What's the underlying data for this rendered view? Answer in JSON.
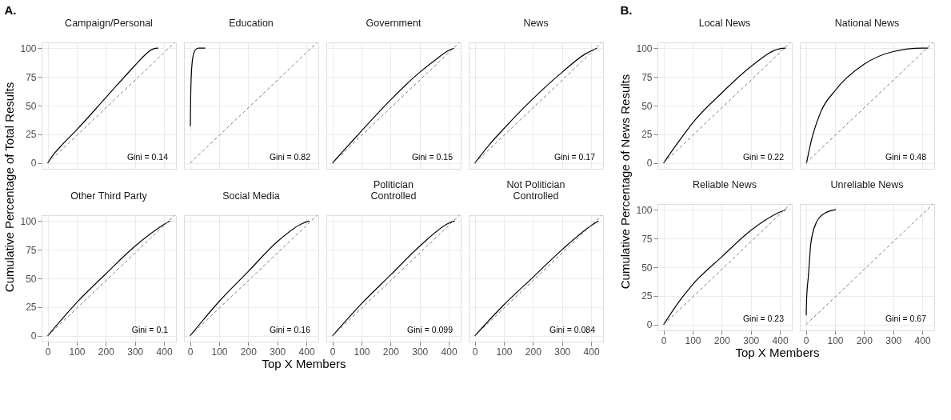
{
  "chart_data": [
    {
      "type": "line",
      "title": "Campaign/Personal",
      "ylabel": "Cumulative Percentage of Total Results",
      "annotations": [
        "A.",
        "Gini = 0.14"
      ],
      "xlim": [
        -21,
        441
      ],
      "ylim": [
        -5,
        105
      ],
      "xticks": [
        0,
        100,
        200,
        300,
        400
      ],
      "yticks": [
        0,
        25,
        50,
        75,
        100
      ],
      "grid": true,
      "tick_labels": "y",
      "series": [
        {
          "color": "#000000",
          "line_style": "solid",
          "x": [
            0,
            10,
            25,
            50,
            100,
            200,
            300,
            330,
            350,
            365,
            380
          ],
          "values": [
            0,
            4,
            9,
            16,
            29,
            57,
            85,
            93,
            97.5,
            99.5,
            100
          ]
        },
        {
          "color": "#808080",
          "line_style": "dashed",
          "x": [
            0,
            437
          ],
          "values": [
            0,
            105
          ]
        }
      ]
    },
    {
      "type": "line",
      "title": "Education",
      "annotations": [
        "Gini = 0.82"
      ],
      "xlim": [
        -21,
        441
      ],
      "ylim": [
        -5,
        105
      ],
      "xticks": [
        0,
        100,
        200,
        300,
        400
      ],
      "yticks": [
        0,
        25,
        50,
        75,
        100
      ],
      "grid": true,
      "tick_labels": false,
      "series": [
        {
          "color": "#000000",
          "line_style": "solid",
          "x": [
            1,
            2,
            4,
            7,
            12,
            20,
            30,
            52
          ],
          "values": [
            32,
            55,
            75,
            87,
            95,
            99,
            100,
            100
          ]
        },
        {
          "color": "#808080",
          "line_style": "dashed",
          "x": [
            0,
            437
          ],
          "values": [
            0,
            105
          ]
        }
      ]
    },
    {
      "type": "line",
      "title": "Government",
      "annotations": [
        "Gini = 0.15"
      ],
      "xlim": [
        -21,
        441
      ],
      "ylim": [
        -5,
        105
      ],
      "xticks": [
        0,
        100,
        200,
        300,
        400
      ],
      "yticks": [
        0,
        25,
        50,
        75,
        100
      ],
      "grid": true,
      "tick_labels": false,
      "series": [
        {
          "color": "#000000",
          "line_style": "solid",
          "x": [
            0,
            50,
            100,
            200,
            300,
            350,
            400,
            418
          ],
          "values": [
            0,
            14,
            28,
            55,
            79,
            89,
            98,
            100
          ]
        },
        {
          "color": "#808080",
          "line_style": "dashed",
          "x": [
            0,
            437
          ],
          "values": [
            0,
            105
          ]
        }
      ]
    },
    {
      "type": "line",
      "title": "News",
      "annotations": [
        "Gini = 0.17"
      ],
      "xlim": [
        -21,
        441
      ],
      "ylim": [
        -5,
        105
      ],
      "xticks": [
        0,
        100,
        200,
        300,
        400
      ],
      "yticks": [
        0,
        25,
        50,
        75,
        100
      ],
      "grid": true,
      "tick_labels": false,
      "series": [
        {
          "color": "#000000",
          "line_style": "solid",
          "x": [
            0,
            50,
            100,
            200,
            300,
            380,
            420
          ],
          "values": [
            0,
            16,
            30,
            56,
            79,
            95,
            100
          ]
        },
        {
          "color": "#808080",
          "line_style": "dashed",
          "x": [
            0,
            437
          ],
          "values": [
            0,
            105
          ]
        }
      ]
    },
    {
      "type": "line",
      "title": "Other Third Party",
      "annotations": [
        "Gini = 0.1"
      ],
      "xlim": [
        -21,
        441
      ],
      "ylim": [
        -5,
        105
      ],
      "xticks": [
        0,
        100,
        200,
        300,
        400
      ],
      "yticks": [
        0,
        25,
        50,
        75,
        100
      ],
      "grid": true,
      "series": [
        {
          "color": "#000000",
          "line_style": "solid",
          "x": [
            0,
            100,
            200,
            300,
            400,
            420
          ],
          "values": [
            0,
            29,
            54,
            78,
            97,
            100
          ]
        },
        {
          "color": "#808080",
          "line_style": "dashed",
          "x": [
            0,
            437
          ],
          "values": [
            0,
            105
          ]
        }
      ]
    },
    {
      "type": "line",
      "title": "Social Media",
      "xlabel": "Top X Members",
      "annotations": [
        "Gini = 0.16"
      ],
      "xlim": [
        -21,
        441
      ],
      "ylim": [
        -5,
        105
      ],
      "xticks": [
        0,
        100,
        200,
        300,
        400
      ],
      "yticks": [
        0,
        25,
        50,
        75,
        100
      ],
      "grid": true,
      "tick_labels": "x",
      "series": [
        {
          "color": "#000000",
          "line_style": "solid",
          "x": [
            0,
            100,
            200,
            300,
            380,
            410
          ],
          "values": [
            0,
            30,
            56,
            82,
            97,
            100
          ]
        },
        {
          "color": "#808080",
          "line_style": "dashed",
          "x": [
            0,
            437
          ],
          "values": [
            0,
            105
          ]
        }
      ]
    },
    {
      "type": "line",
      "title": "Politician\nControlled",
      "annotations": [
        "Gini = 0.099"
      ],
      "xlim": [
        -21,
        441
      ],
      "ylim": [
        -5,
        105
      ],
      "xticks": [
        0,
        100,
        200,
        300,
        400
      ],
      "yticks": [
        0,
        25,
        50,
        75,
        100
      ],
      "grid": true,
      "tick_labels": "x",
      "series": [
        {
          "color": "#000000",
          "line_style": "solid",
          "x": [
            0,
            100,
            200,
            300,
            400,
            420
          ],
          "values": [
            0,
            28,
            53,
            78,
            98,
            100
          ]
        },
        {
          "color": "#808080",
          "line_style": "dashed",
          "x": [
            0,
            437
          ],
          "values": [
            0,
            105
          ]
        }
      ]
    },
    {
      "type": "line",
      "title": "Not Politician\nControlled",
      "annotations": [
        "Gini = 0.084"
      ],
      "xlim": [
        -21,
        441
      ],
      "ylim": [
        -5,
        105
      ],
      "xticks": [
        0,
        100,
        200,
        300,
        400
      ],
      "yticks": [
        0,
        25,
        50,
        75,
        100
      ],
      "grid": true,
      "tick_labels": "x",
      "series": [
        {
          "color": "#000000",
          "line_style": "solid",
          "x": [
            0,
            100,
            200,
            300,
            400,
            425
          ],
          "values": [
            0,
            27,
            51,
            75,
            96,
            100
          ]
        },
        {
          "color": "#808080",
          "line_style": "dashed",
          "x": [
            0,
            437
          ],
          "values": [
            0,
            105
          ]
        }
      ]
    },
    {
      "type": "line",
      "title": "Local News",
      "ylabel": "Cumulative Percentage of News Results",
      "annotations": [
        "B.",
        "Gini = 0.22"
      ],
      "xlim": [
        -21,
        441
      ],
      "ylim": [
        -5,
        105
      ],
      "xticks": [
        0,
        100,
        200,
        300,
        400
      ],
      "yticks": [
        0,
        25,
        50,
        75,
        100
      ],
      "grid": true,
      "tick_labels": "y",
      "series": [
        {
          "color": "#000000",
          "line_style": "solid",
          "x": [
            0,
            50,
            100,
            200,
            300,
            400,
            420
          ],
          "values": [
            0,
            18,
            35,
            61,
            84,
            99.5,
            100
          ]
        },
        {
          "color": "#808080",
          "line_style": "dashed",
          "x": [
            0,
            437
          ],
          "values": [
            0,
            105
          ]
        }
      ]
    },
    {
      "type": "line",
      "title": "National News",
      "annotations": [
        "Gini = 0.48"
      ],
      "xlim": [
        -21,
        441
      ],
      "ylim": [
        -5,
        105
      ],
      "xticks": [
        0,
        100,
        200,
        300,
        400
      ],
      "yticks": [
        0,
        25,
        50,
        75,
        100
      ],
      "grid": true,
      "tick_labels": false,
      "series": [
        {
          "color": "#000000",
          "line_style": "solid",
          "x": [
            2,
            20,
            50,
            100,
            200,
            300,
            400,
            420
          ],
          "values": [
            0,
            21,
            44,
            63,
            86,
            97,
            100,
            100
          ]
        },
        {
          "color": "#808080",
          "line_style": "dashed",
          "x": [
            0,
            437
          ],
          "values": [
            0,
            105
          ]
        }
      ]
    },
    {
      "type": "line",
      "title": "Reliable News",
      "xlabel": "Top X Members",
      "annotations": [
        "Gini = 0.23"
      ],
      "xlim": [
        -21,
        441
      ],
      "ylim": [
        -5,
        105
      ],
      "xticks": [
        0,
        100,
        200,
        300,
        400
      ],
      "yticks": [
        0,
        25,
        50,
        75,
        100
      ],
      "grid": true,
      "series": [
        {
          "color": "#000000",
          "line_style": "solid",
          "x": [
            0,
            50,
            100,
            200,
            300,
            400,
            420
          ],
          "values": [
            0,
            19,
            35,
            59,
            82,
            98,
            100
          ]
        },
        {
          "color": "#808080",
          "line_style": "dashed",
          "x": [
            0,
            437
          ],
          "values": [
            0,
            105
          ]
        }
      ]
    },
    {
      "type": "line",
      "title": "Unreliable News",
      "annotations": [
        "Gini = 0.67"
      ],
      "xlim": [
        -21,
        441
      ],
      "ylim": [
        -5,
        105
      ],
      "xticks": [
        0,
        100,
        200,
        300,
        400
      ],
      "yticks": [
        0,
        25,
        50,
        75,
        100
      ],
      "grid": true,
      "tick_labels": "x",
      "series": [
        {
          "color": "#000000",
          "line_style": "solid",
          "x": [
            1,
            2,
            4,
            8,
            17,
            36,
            65,
            103
          ],
          "values": [
            8,
            20,
            30,
            41,
            71,
            89,
            97,
            100
          ]
        },
        {
          "color": "#808080",
          "line_style": "dashed",
          "x": [
            0,
            437
          ],
          "values": [
            0,
            105
          ]
        }
      ]
    }
  ]
}
